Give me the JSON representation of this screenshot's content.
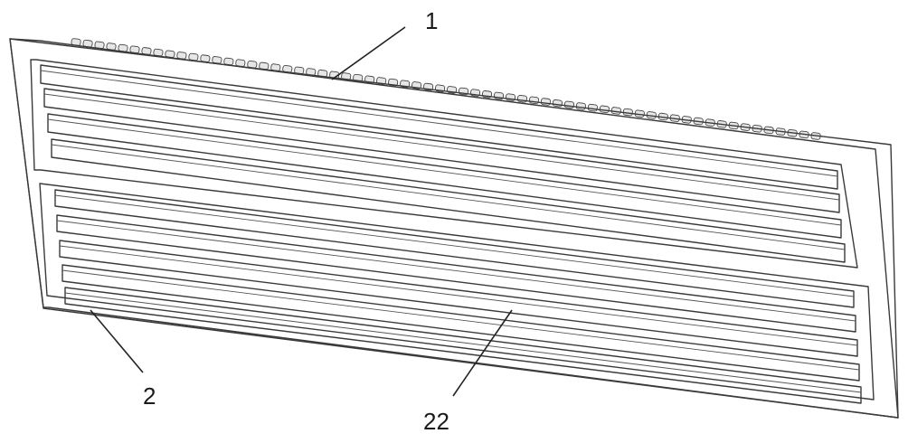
{
  "figure": {
    "labels": [
      {
        "id": "1",
        "text": "1"
      },
      {
        "id": "2",
        "text": "2"
      },
      {
        "id": "22",
        "text": "22"
      }
    ],
    "colors": {
      "line": "#3a3a3a",
      "background": "#ffffff",
      "panel": "#fafafa"
    }
  }
}
